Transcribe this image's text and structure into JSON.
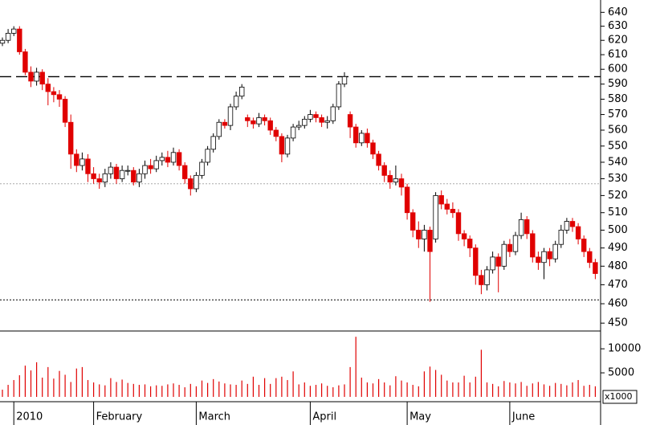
{
  "chart_data": {
    "type": "candlestick",
    "log_scale": true,
    "up_color": "#ffffff",
    "down_color": "#e00000",
    "volume_color": "#e00000",
    "open": [
      618,
      620,
      625,
      628,
      612,
      598,
      592,
      598,
      590,
      585,
      583,
      580,
      565,
      545,
      538,
      542,
      533,
      530,
      528,
      533,
      537,
      530,
      535,
      535,
      528,
      533,
      538,
      536,
      541,
      543,
      540,
      546,
      538,
      530,
      524,
      532,
      540,
      548,
      556,
      565,
      563,
      575,
      582,
      568,
      566,
      564,
      568,
      566,
      560,
      556,
      545,
      555,
      562,
      563,
      567,
      570,
      568,
      565,
      566,
      575,
      590,
      570,
      562,
      552,
      558,
      552,
      545,
      538,
      532,
      528,
      530,
      525,
      510,
      500,
      495,
      500,
      495,
      520,
      515,
      512,
      510,
      498,
      495,
      490,
      475,
      470,
      478,
      485,
      480,
      492,
      488,
      497,
      506,
      498,
      485,
      482,
      488,
      484,
      492,
      500,
      505,
      502,
      495,
      488,
      482
    ],
    "high": [
      622,
      628,
      630,
      630,
      614,
      602,
      601,
      600,
      594,
      588,
      586,
      582,
      570,
      548,
      546,
      545,
      537,
      533,
      536,
      540,
      539,
      538,
      538,
      537,
      536,
      541,
      542,
      544,
      546,
      547,
      549,
      548,
      540,
      532,
      534,
      542,
      550,
      558,
      567,
      567,
      577,
      585,
      590,
      570,
      568,
      571,
      570,
      568,
      562,
      558,
      557,
      564,
      566,
      569,
      573,
      572,
      570,
      569,
      577,
      592,
      598,
      572,
      564,
      560,
      561,
      554,
      547,
      540,
      535,
      538,
      533,
      527,
      512,
      505,
      503,
      502,
      522,
      523,
      518,
      516,
      512,
      500,
      497,
      492,
      478,
      480,
      488,
      487,
      494,
      495,
      499,
      510,
      508,
      500,
      488,
      490,
      490,
      494,
      503,
      507,
      507,
      504,
      497,
      490,
      484
    ],
    "low": [
      616,
      618,
      623,
      610,
      596,
      588,
      589,
      586,
      576,
      578,
      575,
      562,
      536,
      534,
      535,
      528,
      527,
      524,
      525,
      530,
      527,
      528,
      532,
      526,
      525,
      530,
      533,
      534,
      538,
      537,
      538,
      535,
      527,
      520,
      522,
      530,
      538,
      546,
      554,
      561,
      560,
      573,
      580,
      562,
      561,
      562,
      563,
      557,
      553,
      540,
      543,
      553,
      560,
      561,
      565,
      565,
      562,
      561,
      564,
      573,
      588,
      555,
      549,
      550,
      549,
      542,
      535,
      528,
      524,
      526,
      520,
      506,
      496,
      490,
      488,
      461,
      493,
      512,
      509,
      507,
      494,
      491,
      485,
      470,
      465,
      467,
      476,
      466,
      478,
      485,
      486,
      495,
      495,
      482,
      478,
      473,
      480,
      482,
      490,
      498,
      499,
      492,
      485,
      479,
      473
    ],
    "close": [
      620,
      625,
      628,
      612,
      598,
      592,
      598,
      590,
      585,
      583,
      580,
      565,
      545,
      538,
      542,
      533,
      530,
      528,
      533,
      537,
      530,
      535,
      535,
      528,
      533,
      538,
      536,
      541,
      543,
      540,
      546,
      538,
      530,
      524,
      532,
      540,
      548,
      556,
      565,
      563,
      575,
      582,
      588,
      566,
      564,
      568,
      566,
      560,
      556,
      545,
      555,
      562,
      563,
      567,
      570,
      568,
      565,
      566,
      575,
      590,
      595,
      562,
      552,
      558,
      552,
      545,
      538,
      532,
      528,
      530,
      525,
      510,
      500,
      495,
      500,
      488,
      520,
      515,
      512,
      510,
      498,
      495,
      490,
      475,
      470,
      478,
      485,
      480,
      492,
      488,
      497,
      506,
      498,
      485,
      482,
      488,
      484,
      492,
      500,
      505,
      502,
      495,
      488,
      482,
      476
    ],
    "volume": [
      1500,
      2500,
      3500,
      4500,
      6500,
      5500,
      7200,
      4000,
      6200,
      3800,
      5400,
      4600,
      3100,
      5900,
      6200,
      3500,
      3000,
      2600,
      2400,
      3900,
      3100,
      3600,
      2900,
      2700,
      2500,
      2600,
      2200,
      2400,
      2300,
      2600,
      2800,
      2500,
      2000,
      2700,
      2200,
      3400,
      2900,
      3700,
      3200,
      2800,
      2600,
      2500,
      3400,
      2700,
      4200,
      2500,
      3900,
      2700,
      3900,
      4200,
      3500,
      5300,
      2600,
      3000,
      2300,
      2500,
      2800,
      2300,
      2000,
      2400,
      2600,
      6200,
      12500,
      4000,
      3000,
      2800,
      3700,
      3000,
      2400,
      4300,
      3400,
      3000,
      2500,
      2200,
      5300,
      6300,
      5600,
      4600,
      3400,
      3000,
      3000,
      4400,
      3000,
      4200,
      9800,
      3000,
      2700,
      2200,
      3300,
      3000,
      2800,
      3100,
      2300,
      2800,
      3100,
      2600,
      2300,
      2900,
      2700,
      2400,
      3000,
      3500,
      2300,
      2500,
      2200
    ],
    "ylim": [
      446,
      649
    ],
    "yticks": [
      450,
      460,
      470,
      480,
      490,
      500,
      510,
      520,
      530,
      540,
      550,
      560,
      570,
      580,
      590,
      600,
      610,
      620,
      630,
      640
    ],
    "volume_ylim": [
      0,
      13700
    ],
    "volume_ticks": [
      5000,
      10000
    ],
    "volume_unit": "x1000",
    "xticks": [
      {
        "value": 2,
        "label": "2010"
      },
      {
        "value": 16,
        "label": "February"
      },
      {
        "value": 34,
        "label": "March"
      },
      {
        "value": 54,
        "label": "April"
      },
      {
        "value": 71,
        "label": "May"
      },
      {
        "value": 89,
        "label": "June"
      }
    ],
    "reference_lines": [
      {
        "value": 595,
        "style": "dashed"
      },
      {
        "value": 527,
        "style": "dotted-light"
      },
      {
        "value": 462,
        "style": "dotted"
      }
    ]
  }
}
